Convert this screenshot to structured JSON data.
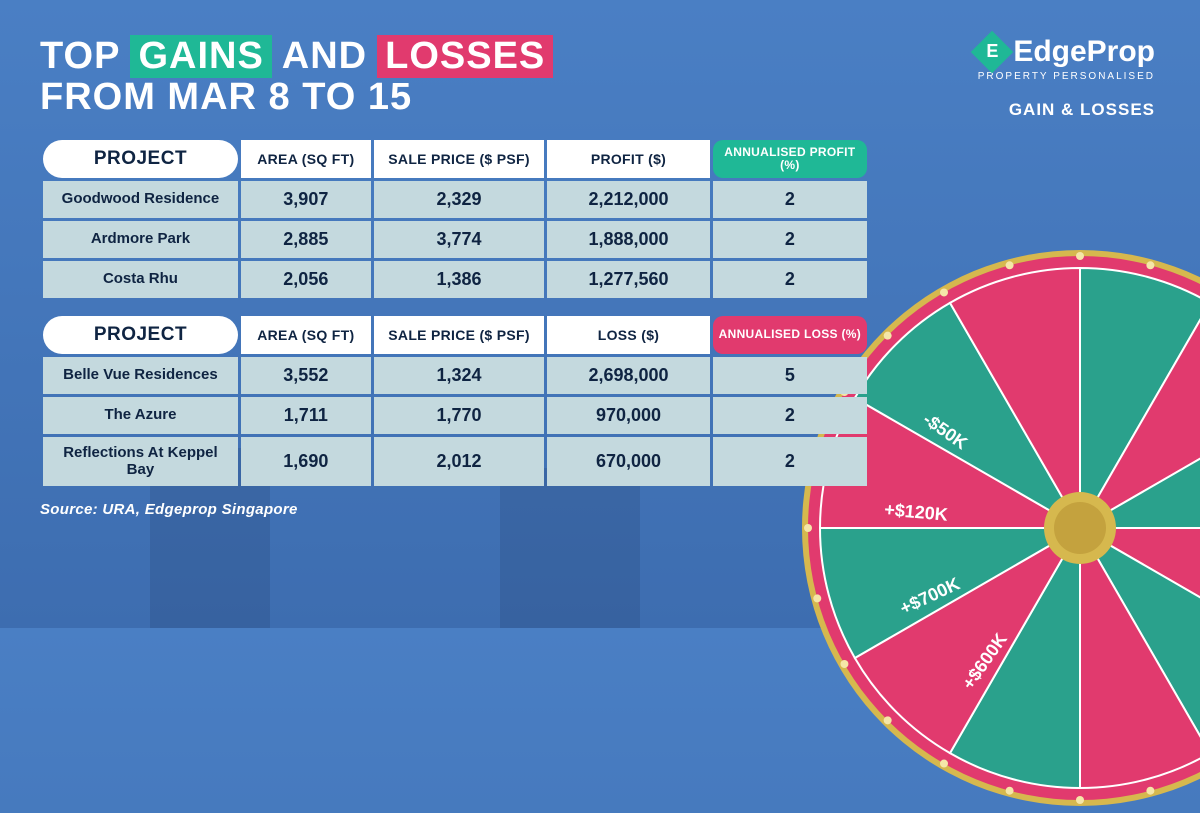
{
  "title": {
    "word_top": "TOP",
    "word_gains": "GAINS",
    "word_and": "AND",
    "word_losses": "LOSSES",
    "line2": "FROM MAR 8 TO 15"
  },
  "brand": {
    "name": "EdgeProp",
    "tagline": "PROPERTY PERSONALISED",
    "section": "GAIN & LOSSES"
  },
  "colors": {
    "gain_bg": "#1fb896",
    "loss_bg": "#e13a6e",
    "cell_bg": "#c4d9de",
    "header_bg": "#ffffff",
    "text_dark": "#0f2442",
    "page_bg_top": "#4a7fc4",
    "page_bg_bottom": "#3d6db0",
    "wheel_dark": "#2aa18c",
    "wheel_pink": "#e13a6e",
    "wheel_gold": "#d6b84e"
  },
  "headers": {
    "project": "PROJECT",
    "area": "AREA (SQ FT)",
    "sale_price": "SALE PRICE ($ PSF)",
    "profit": "PROFIT ($)",
    "loss": "LOSS ($)",
    "ann_profit": "ANNUALISED PROFIT (%)",
    "ann_loss": "ANNUALISED LOSS (%)"
  },
  "gains": [
    {
      "project": "Goodwood Residence",
      "area": "3,907",
      "price": "2,329",
      "profit": "2,212,000",
      "ann": "2"
    },
    {
      "project": "Ardmore Park",
      "area": "2,885",
      "price": "3,774",
      "profit": "1,888,000",
      "ann": "2"
    },
    {
      "project": "Costa Rhu",
      "area": "2,056",
      "price": "1,386",
      "profit": "1,277,560",
      "ann": "2"
    }
  ],
  "losses": [
    {
      "project": "Belle Vue Residences",
      "area": "3,552",
      "price": "1,324",
      "loss": "2,698,000",
      "ann": "5"
    },
    {
      "project": "The Azure",
      "area": "1,711",
      "price": "1,770",
      "loss": "970,000",
      "ann": "2"
    },
    {
      "project": "Reflections At Keppel Bay",
      "area": "1,690",
      "price": "2,012",
      "loss": "670,000",
      "ann": "2"
    }
  ],
  "source": "Source: URA, Edgeprop Singapore",
  "wheel": {
    "segments": [
      {
        "label": "+$600K",
        "color": "#2aa18c",
        "angle": -55
      },
      {
        "label": "+$700K",
        "color": "#e13a6e",
        "angle": -25
      },
      {
        "label": "+$120K",
        "color": "#2aa18c",
        "angle": 5
      },
      {
        "label": "-$50K",
        "color": "#e13a6e",
        "angle": 35
      }
    ]
  }
}
